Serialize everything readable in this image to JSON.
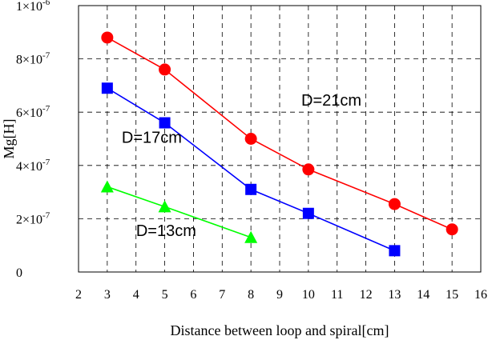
{
  "chart_data": {
    "type": "line",
    "title": "",
    "xlabel": "Distance between loop and spiral[cm]",
    "ylabel": "Mg[H]",
    "xlim": [
      2,
      16
    ],
    "ylim": [
      0,
      1e-06
    ],
    "grid": true,
    "x_ticks": [
      2,
      3,
      4,
      5,
      6,
      7,
      8,
      9,
      10,
      11,
      12,
      13,
      14,
      15,
      16
    ],
    "y_ticks": [
      {
        "value": 0,
        "mantissa": "0",
        "exponent": ""
      },
      {
        "value": 2e-07,
        "mantissa": "2×10",
        "exponent": "-7"
      },
      {
        "value": 4e-07,
        "mantissa": "4×10",
        "exponent": "-7"
      },
      {
        "value": 6e-07,
        "mantissa": "6×10",
        "exponent": "-7"
      },
      {
        "value": 8e-07,
        "mantissa": "8×10",
        "exponent": "-7"
      },
      {
        "value": 1e-06,
        "mantissa": "1×10",
        "exponent": "-6"
      }
    ],
    "series": [
      {
        "name": "D=21cm",
        "color": "#ff0000",
        "marker": "circle",
        "x": [
          3,
          5,
          8,
          10,
          13,
          15
        ],
        "y": [
          8.8e-07,
          7.6e-07,
          5e-07,
          3.85e-07,
          2.55e-07,
          1.6e-07
        ]
      },
      {
        "name": "D=17cm",
        "color": "#0000ff",
        "marker": "square",
        "x": [
          3,
          5,
          8,
          10,
          13
        ],
        "y": [
          6.9e-07,
          5.6e-07,
          3.1e-07,
          2.2e-07,
          8e-08
        ]
      },
      {
        "name": "D=13cm",
        "color": "#00ff00",
        "marker": "triangle",
        "x": [
          3,
          5,
          8
        ],
        "y": [
          3.2e-07,
          2.45e-07,
          1.3e-07
        ]
      }
    ],
    "annotations": [
      {
        "text": "D=21cm",
        "x": 10.8,
        "y": 6.25e-07
      },
      {
        "text": "D=17cm",
        "x": 4.55,
        "y": 4.85e-07
      },
      {
        "text": "D=13cm",
        "x": 5.05,
        "y": 1.35e-07
      }
    ]
  }
}
